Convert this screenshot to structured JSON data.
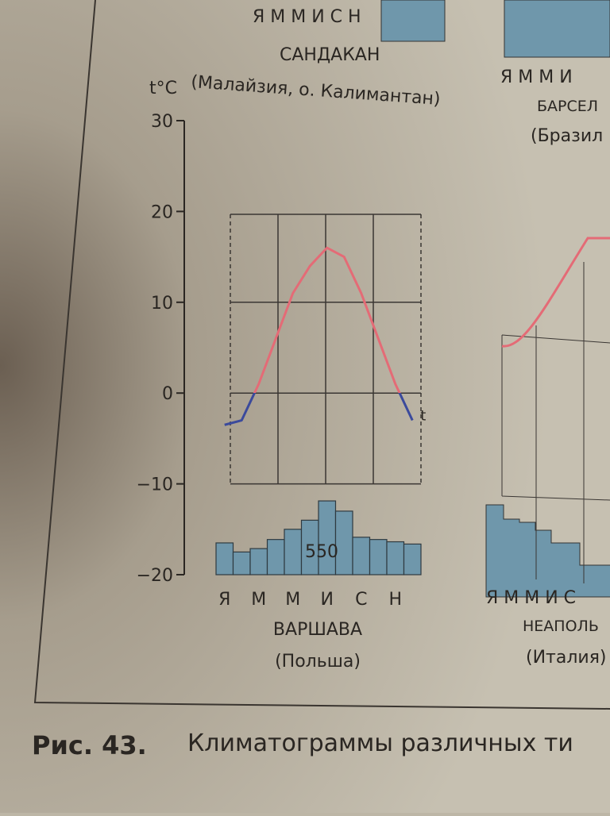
{
  "chart_data": {
    "type": "climatogram",
    "title": "ВАРШАВА",
    "subtitle": "(Польша)",
    "y_label": "t°C",
    "line_label": "t",
    "categories": [
      "Я",
      null,
      "М",
      null,
      "М",
      null,
      "И",
      null,
      "С",
      null,
      "Н",
      null
    ],
    "temperature": {
      "values": [
        -3.5,
        -3,
        1,
        6,
        11,
        14,
        16,
        15,
        11,
        6,
        1,
        -3
      ],
      "color": "#e46b76",
      "negative_color": "#3b4a9c"
    },
    "precipitation": {
      "values": [
        28,
        20,
        23,
        31,
        40,
        48,
        65,
        56,
        33,
        31,
        29,
        27
      ],
      "color": "#6f97ab",
      "axis": "y2"
    },
    "annual_precipitation": 550,
    "ylim": [
      -20,
      30
    ],
    "yticks": [
      30,
      20,
      10,
      0,
      {
        "value": -10,
        "label": "−10"
      },
      {
        "value": -20,
        "label": "−20"
      }
    ],
    "y2lim": [
      0,
      400
    ],
    "grid": true
  },
  "page": {
    "top_months": "Я М М И С Н",
    "top_title": "САНДАКАН",
    "top_subtitle": "(Малайзия, о. Калимантан)",
    "right_months": "Я М М И",
    "right_title": "БАРСЕЛ",
    "right_subtitle": "(Бразил",
    "naples_months": "Я М М И С",
    "naples_title": "НЕАПОЛЬ",
    "naples_subtitle": "(Италия)",
    "caption_number": "Рис. 43.",
    "caption_text": "Климатограммы различных ти"
  }
}
